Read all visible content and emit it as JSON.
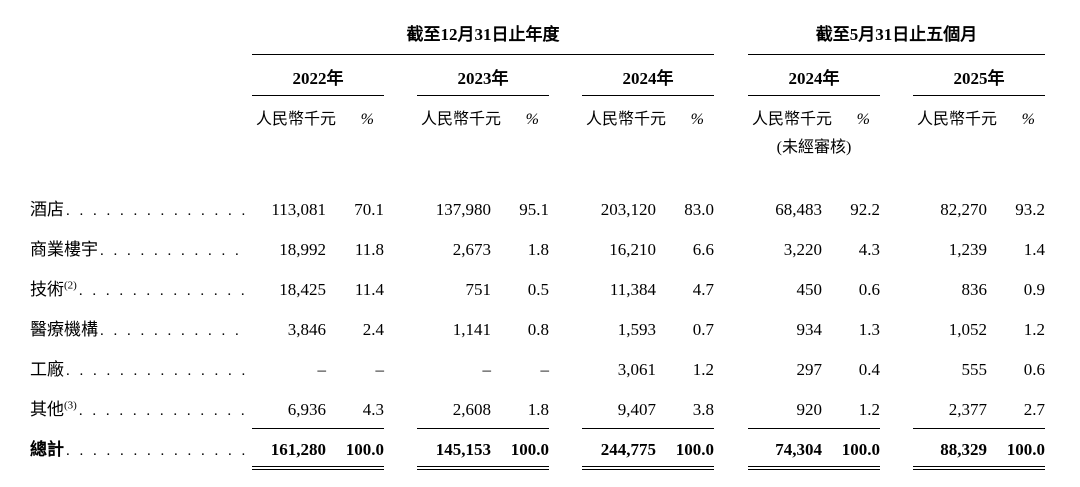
{
  "table": {
    "period_groups": [
      {
        "title": "截至12月31日止年度"
      },
      {
        "title": "截至5月31日止五個月"
      }
    ],
    "years": [
      "2022年",
      "2023年",
      "2024年",
      "2024年",
      "2025年"
    ],
    "unit_label": "人民幣千元",
    "pct_label": "%",
    "unaudited_note": "(未經審核)",
    "rows": [
      {
        "label": "酒店",
        "note": "",
        "values": [
          "113,081",
          "70.1",
          "137,980",
          "95.1",
          "203,120",
          "83.0",
          "68,483",
          "92.2",
          "82,270",
          "93.2"
        ]
      },
      {
        "label": "商業樓宇",
        "note": "",
        "values": [
          "18,992",
          "11.8",
          "2,673",
          "1.8",
          "16,210",
          "6.6",
          "3,220",
          "4.3",
          "1,239",
          "1.4"
        ]
      },
      {
        "label": "技術",
        "note": "(2)",
        "values": [
          "18,425",
          "11.4",
          "751",
          "0.5",
          "11,384",
          "4.7",
          "450",
          "0.6",
          "836",
          "0.9"
        ]
      },
      {
        "label": "醫療機構",
        "note": "",
        "values": [
          "3,846",
          "2.4",
          "1,141",
          "0.8",
          "1,593",
          "0.7",
          "934",
          "1.3",
          "1,052",
          "1.2"
        ]
      },
      {
        "label": "工廠",
        "note": "",
        "values": [
          "–",
          "–",
          "–",
          "–",
          "3,061",
          "1.2",
          "297",
          "0.4",
          "555",
          "0.6"
        ]
      },
      {
        "label": "其他",
        "note": "(3)",
        "values": [
          "6,936",
          "4.3",
          "2,608",
          "1.8",
          "9,407",
          "3.8",
          "920",
          "1.2",
          "2,377",
          "2.7"
        ]
      }
    ],
    "total_row": {
      "label": "總計",
      "note": "",
      "values": [
        "161,280",
        "100.0",
        "145,153",
        "100.0",
        "244,775",
        "100.0",
        "74,304",
        "100.0",
        "88,329",
        "100.0"
      ]
    }
  }
}
